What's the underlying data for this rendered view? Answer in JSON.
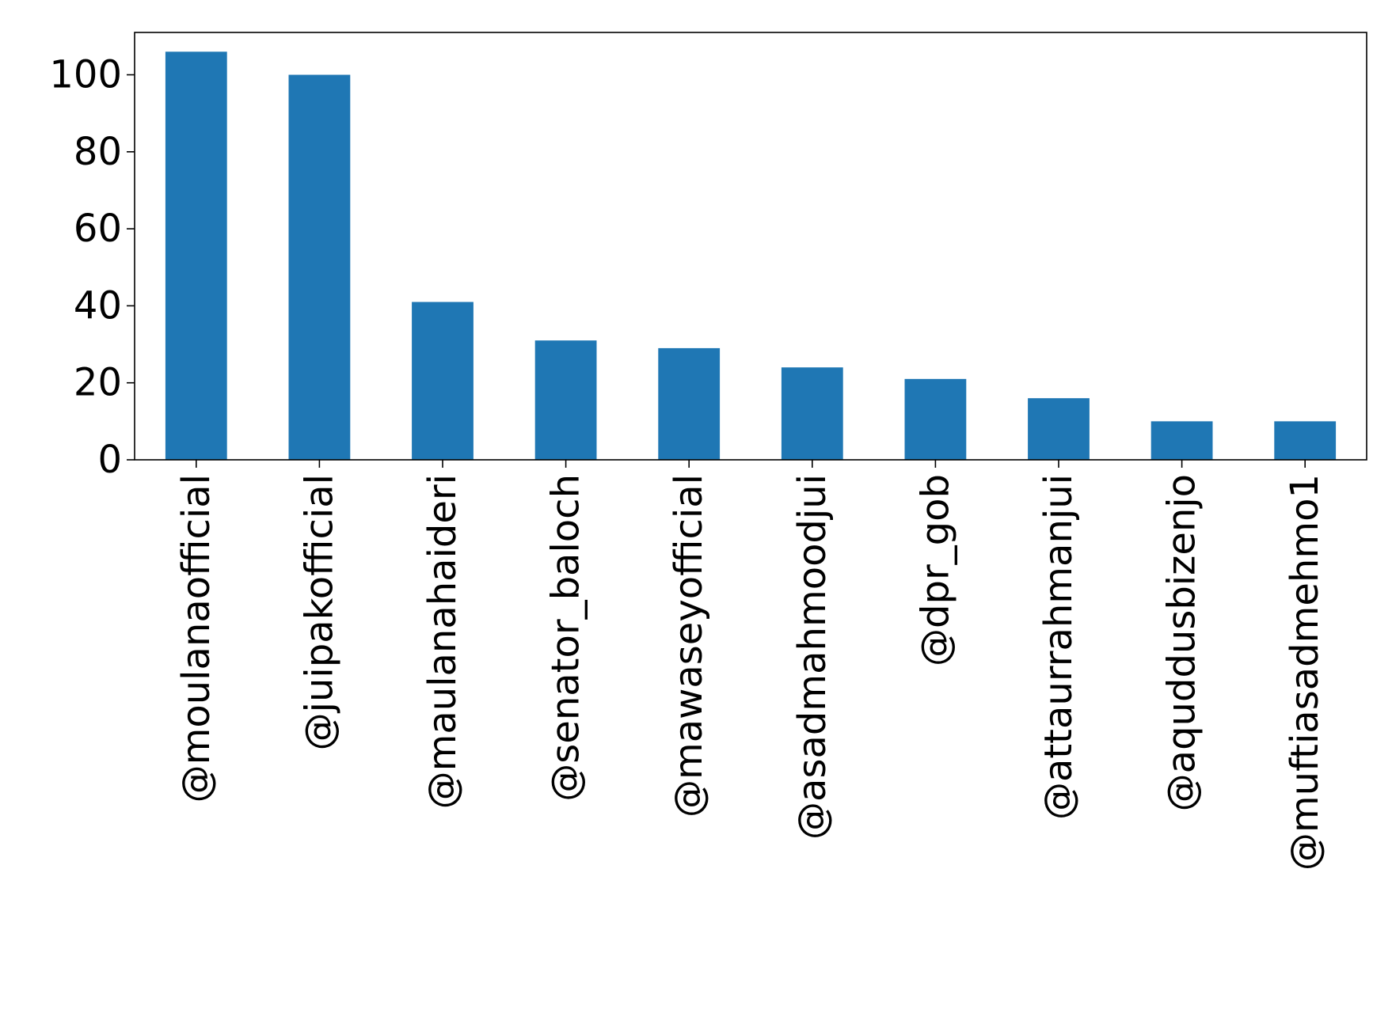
{
  "chart_data": {
    "type": "bar",
    "title": "",
    "xlabel": "",
    "ylabel": "",
    "categories": [
      "@moulanaofficial",
      "@juipakofficial",
      "@maulanahaideri",
      "@senator_baloch",
      "@mawaseyofficial",
      "@asadmahmoodjui",
      "@dpr_gob",
      "@attaurrahmanjui",
      "@aquddusbizenjo",
      "@muftiasadmehmo1"
    ],
    "values": [
      106,
      100,
      41,
      31,
      29,
      24,
      21,
      16,
      10,
      10
    ],
    "ylim": [
      0,
      111
    ],
    "yticks": [
      0,
      20,
      40,
      60,
      80,
      100
    ],
    "grid": false,
    "legend": "none",
    "bar_color": "#1f77b4",
    "axis_color": "#000000"
  }
}
